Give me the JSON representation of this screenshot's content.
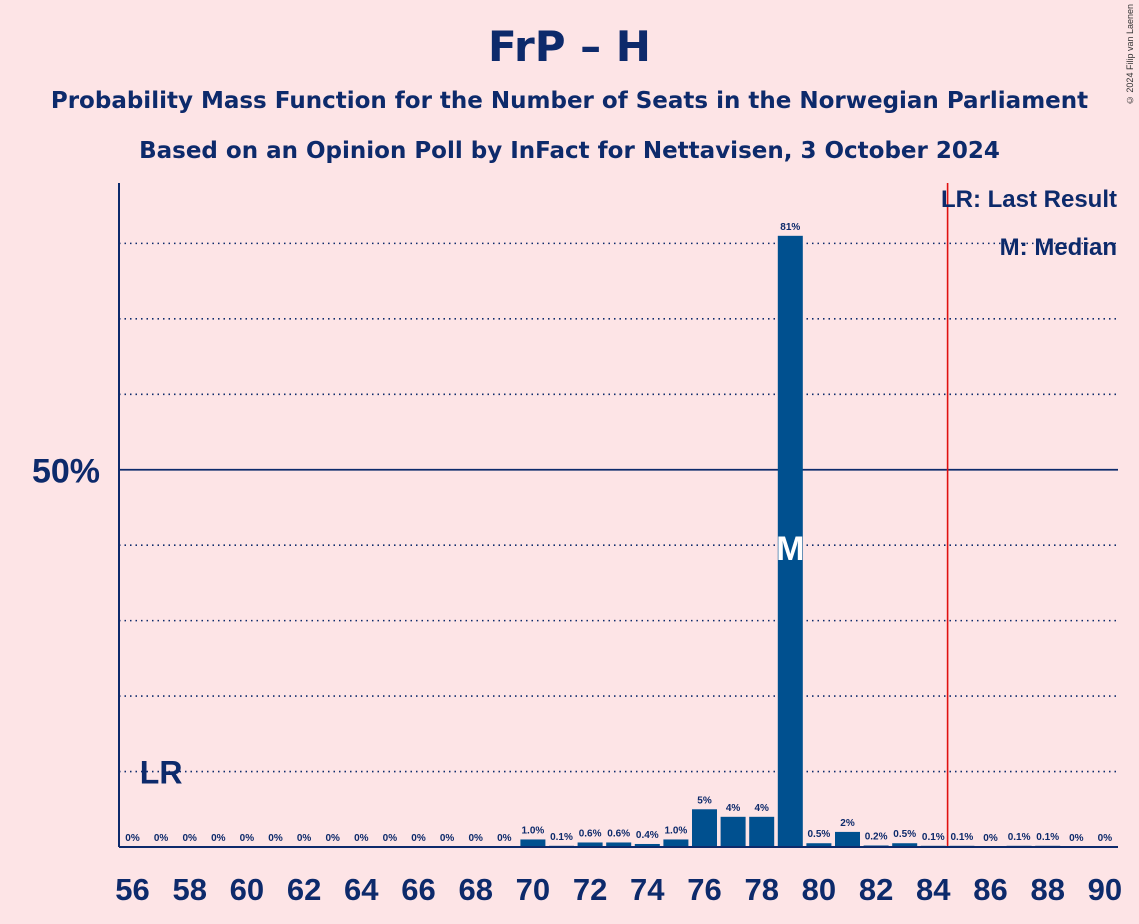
{
  "title": "FrP – H",
  "subtitle1": "Probability Mass Function for the Number of Seats in the Norwegian Parliament",
  "subtitle2": "Based on an Opinion Poll by InFact for Nettavisen, 3 October 2024",
  "copyright": "© 2024 Filip van Laenen",
  "legend": {
    "lr": "LR: Last Result",
    "m": "M: Median"
  },
  "colors": {
    "background": "#fde4e6",
    "bar": "#00508f",
    "axis": "#0d2a6b",
    "last_result_line": "#e01010"
  },
  "chart_data": {
    "type": "bar",
    "title": "FrP – H",
    "xlabel": "",
    "ylabel": "",
    "ylim": [
      0,
      88
    ],
    "y_tick_label": {
      "value": 50,
      "label": "50%"
    },
    "gridlines": [
      10,
      20,
      30,
      40,
      60,
      70,
      80
    ],
    "x": [
      56,
      57,
      58,
      59,
      60,
      61,
      62,
      63,
      64,
      65,
      66,
      67,
      68,
      69,
      70,
      71,
      72,
      73,
      74,
      75,
      76,
      77,
      78,
      79,
      80,
      81,
      82,
      83,
      84,
      85,
      86,
      87,
      88,
      89,
      90
    ],
    "values": [
      0,
      0,
      0,
      0,
      0,
      0,
      0,
      0,
      0,
      0,
      0,
      0,
      0,
      0,
      1.0,
      0.1,
      0.6,
      0.6,
      0.4,
      1.0,
      5,
      4,
      4,
      81,
      0.5,
      2,
      0.2,
      0.5,
      0.1,
      0.1,
      0,
      0.1,
      0.1,
      0,
      0
    ],
    "labels": [
      "0%",
      "0%",
      "0%",
      "0%",
      "0%",
      "0%",
      "0%",
      "0%",
      "0%",
      "0%",
      "0%",
      "0%",
      "0%",
      "0%",
      "1.0%",
      "0.1%",
      "0.6%",
      "0.6%",
      "0.4%",
      "1.0%",
      "5%",
      "4%",
      "4%",
      "81%",
      "0.5%",
      "2%",
      "0.2%",
      "0.5%",
      "0.1%",
      "0.1%",
      "0%",
      "0.1%",
      "0.1%",
      "0%",
      "0%"
    ],
    "x_tick_labels": [
      56,
      58,
      60,
      62,
      64,
      66,
      68,
      70,
      72,
      74,
      76,
      78,
      80,
      82,
      84,
      86,
      88,
      90
    ],
    "median": 79,
    "median_label": "M",
    "last_result": 57,
    "last_result_label": "LR",
    "last_result_line_at": 84.5
  }
}
